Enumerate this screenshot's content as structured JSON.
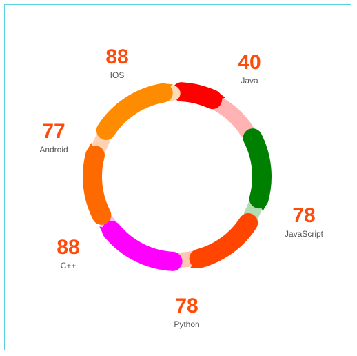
{
  "chart_data": {
    "type": "radial-segments",
    "value_color": "#fe4a0a",
    "series": [
      {
        "name": "Java",
        "value": 40,
        "color": "#ff0000",
        "light": "#ffb3b3"
      },
      {
        "name": "JavaScript",
        "value": 78,
        "color": "#008000",
        "light": "#b3dcb3"
      },
      {
        "name": "Python",
        "value": 78,
        "color": "#ff4500",
        "light": "#ffc7b3"
      },
      {
        "name": "C++",
        "value": 88,
        "color": "#ff00ff",
        "light": "#ffb3ff"
      },
      {
        "name": "Android",
        "value": 77,
        "color": "#ff6a00",
        "light": "#ffd2b3"
      },
      {
        "name": "IOS",
        "value": 88,
        "color": "#ff8c00",
        "light": "#ffdcb3"
      }
    ]
  }
}
